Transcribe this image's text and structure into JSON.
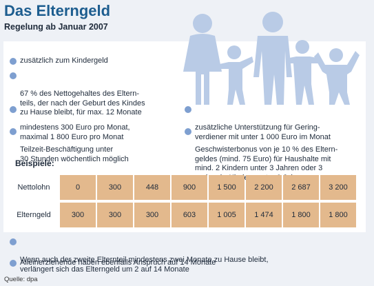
{
  "header": {
    "title": "Das Elterngeld",
    "subtitle": "Regelung ab Januar 2007"
  },
  "bullets_left": [
    "zusätzlich zum Kindergeld",
    "67 % des Nettogehaltes des Eltern-\nteils, der nach der Geburt des Kindes\nzu Hause bleibt, für max. 12 Monate",
    "mindestens 300 Euro pro Monat,\nmaximal 1 800 Euro pro Monat",
    "Teilzeit-Beschäftigung unter\n30 Stunden wöchentlich möglich"
  ],
  "bullets_right": [
    "zusätzliche Unterstützung für Gering-\nverdiener mit unter 1 000 Euro im Monat",
    "Geschwisterbonus von je 10 % des Eltern-\ngeldes (mind. 75 Euro) für Haushalte mit\nmind. 2 Kindern unter 3 Jahren oder 3\nund mehr Kindern unter 6 Jahren"
  ],
  "examples": {
    "label": "Beispiele:",
    "rows": [
      {
        "label": "Nettolohn",
        "values": [
          "0",
          "300",
          "448",
          "900",
          "1 500",
          "2 200",
          "2 687",
          "3 200"
        ]
      },
      {
        "label": "Elterngeld",
        "values": [
          "300",
          "300",
          "300",
          "603",
          "1 005",
          "1 474",
          "1 800",
          "1 800"
        ]
      }
    ]
  },
  "bullets_bottom": [
    "Wenn auch der zweite Elternteil mindestens zwei Monate zu Hause bleibt,\nverlängert sich das Elterngeld um 2 auf 14 Monate",
    "Alleinerziehende haben ebenfalls Anspruch auf 14 Monate"
  ],
  "source": "Quelle: dpa",
  "colors": {
    "title": "#1d5d8f",
    "bullet_dot": "#7e9fd0",
    "table_cell": "#e3b98d",
    "family_icon": "#b9cbe6"
  },
  "icons": [
    "family-pictogram-icon"
  ]
}
